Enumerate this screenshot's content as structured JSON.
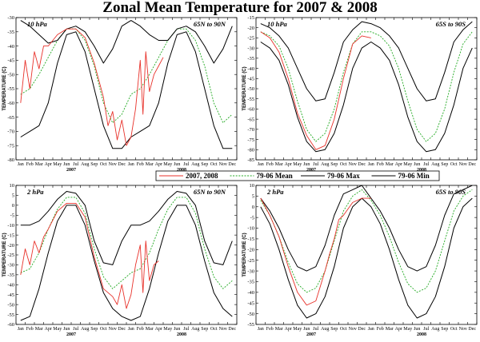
{
  "title": "Zonal Mean Temperature for 2007 & 2008",
  "legend": [
    {
      "label": "2007, 2008",
      "color": "#e8322b",
      "style": "solid"
    },
    {
      "label": "79-06 Mean",
      "color": "#22aa22",
      "style": "dotted"
    },
    {
      "label": "79-06 Max",
      "color": "#000000",
      "style": "solid"
    },
    {
      "label": "79-06 Min",
      "color": "#000000",
      "style": "solid"
    }
  ],
  "months": [
    "Jan",
    "Feb",
    "Mar",
    "Apr",
    "May",
    "Jun",
    "Jul",
    "Aug",
    "Sep",
    "Oct",
    "Nov",
    "Dec",
    "Jan",
    "Feb",
    "Mar",
    "Apr",
    "May",
    "Jun",
    "Jul",
    "Aug",
    "Sep",
    "Oct",
    "Nov",
    "Dec"
  ],
  "years": [
    "2007",
    "2008"
  ],
  "chart_data": [
    {
      "type": "line",
      "level": "10 hPa",
      "region": "65N to 90N",
      "ylabel": "TEMPERATURE (C)",
      "ylim": [
        -80,
        -30
      ],
      "yticks": [
        -80,
        -75,
        -70,
        -65,
        -60,
        -55,
        -50,
        -45,
        -40,
        -35,
        -30
      ],
      "x_months": 24,
      "series": [
        {
          "name": "79-06 Max",
          "x": [
            0,
            1,
            2,
            3,
            4,
            5,
            6,
            7,
            8,
            9,
            10,
            11,
            12,
            13,
            14,
            15,
            16,
            17,
            18,
            19,
            20,
            21,
            22,
            23
          ],
          "values": [
            -31,
            -33,
            -36,
            -39,
            -38,
            -34,
            -33,
            -35,
            -40,
            -46,
            -41,
            -33,
            -31,
            -33,
            -36,
            -38,
            -38,
            -34,
            -33,
            -35,
            -40,
            -46,
            -41,
            -33
          ]
        },
        {
          "name": "79-06 Mean",
          "x": [
            0,
            1,
            2,
            3,
            4,
            5,
            6,
            7,
            8,
            9,
            10,
            11,
            12,
            13,
            14,
            15,
            16,
            17,
            18,
            19,
            20,
            21,
            22,
            23
          ],
          "values": [
            -57,
            -55,
            -50,
            -44,
            -38,
            -34,
            -34,
            -38,
            -47,
            -60,
            -67,
            -64,
            -57,
            -55,
            -50,
            -44,
            -38,
            -34,
            -34,
            -38,
            -47,
            -60,
            -67,
            -64
          ]
        },
        {
          "name": "79-06 Min",
          "x": [
            0,
            1,
            2,
            3,
            4,
            5,
            6,
            7,
            8,
            9,
            10,
            11,
            12,
            13,
            14,
            15,
            16,
            17,
            18,
            19,
            20,
            21,
            22,
            23
          ],
          "values": [
            -72,
            -70,
            -68,
            -60,
            -46,
            -36,
            -35,
            -42,
            -55,
            -68,
            -76,
            -76,
            -72,
            -70,
            -68,
            -60,
            -46,
            -36,
            -35,
            -42,
            -55,
            -68,
            -76,
            -76
          ]
        },
        {
          "name": "2007, 2008",
          "x": [
            0,
            0.5,
            1,
            1.5,
            2,
            2.5,
            3,
            4,
            5,
            6,
            7,
            8,
            9,
            9.5,
            10,
            10.5,
            11,
            11.5,
            12,
            12.5,
            13,
            13.3,
            13.6,
            14,
            14.5,
            15,
            15.5
          ],
          "values": [
            -60,
            -45,
            -55,
            -42,
            -48,
            -40,
            -40,
            -36,
            -34,
            -34,
            -37,
            -46,
            -58,
            -68,
            -63,
            -73,
            -66,
            -75,
            -72,
            -62,
            -45,
            -64,
            -42,
            -56,
            -50,
            -47,
            -44
          ]
        }
      ]
    },
    {
      "type": "line",
      "level": "10 hPa",
      "region": "65S to 90S",
      "ylabel": "TEMPERATURE (C)",
      "ylim": [
        -85,
        -15
      ],
      "yticks": [
        -85,
        -80,
        -75,
        -70,
        -65,
        -60,
        -55,
        -50,
        -45,
        -40,
        -35,
        -30,
        -25,
        -20,
        -15
      ],
      "x_months": 24,
      "series": [
        {
          "name": "79-06 Max",
          "x": [
            0,
            1,
            2,
            3,
            4,
            5,
            6,
            7,
            8,
            9,
            10,
            11,
            12,
            13,
            14,
            15,
            16,
            17,
            18,
            19,
            20,
            21,
            22,
            23
          ],
          "values": [
            -18,
            -20,
            -24,
            -30,
            -40,
            -50,
            -56,
            -55,
            -42,
            -27,
            -21,
            -17,
            -18,
            -20,
            -24,
            -30,
            -40,
            -50,
            -56,
            -55,
            -42,
            -27,
            -21,
            -17
          ]
        },
        {
          "name": "79-06 Mean",
          "x": [
            0,
            1,
            2,
            3,
            4,
            5,
            6,
            7,
            8,
            9,
            10,
            11,
            12,
            13,
            14,
            15,
            16,
            17,
            18,
            19,
            20,
            21,
            22,
            23
          ],
          "values": [
            -22,
            -24,
            -29,
            -40,
            -56,
            -70,
            -76,
            -72,
            -60,
            -42,
            -28,
            -22,
            -22,
            -24,
            -29,
            -40,
            -56,
            -70,
            -76,
            -72,
            -60,
            -42,
            -28,
            -22
          ]
        },
        {
          "name": "79-06 Min",
          "x": [
            0,
            1,
            2,
            3,
            4,
            5,
            6,
            7,
            8,
            9,
            10,
            11,
            12,
            13,
            14,
            15,
            16,
            17,
            18,
            19,
            20,
            21,
            22,
            23
          ],
          "values": [
            -27,
            -30,
            -36,
            -48,
            -64,
            -76,
            -81,
            -80,
            -72,
            -58,
            -40,
            -30,
            -27,
            -30,
            -36,
            -48,
            -64,
            -76,
            -81,
            -80,
            -72,
            -58,
            -40,
            -30
          ]
        },
        {
          "name": "2007, 2008",
          "x": [
            0,
            1,
            2,
            3,
            4,
            5,
            6,
            7,
            8,
            9,
            10,
            11,
            12
          ],
          "values": [
            -22,
            -25,
            -32,
            -45,
            -62,
            -73,
            -80,
            -78,
            -65,
            -45,
            -28,
            -24,
            -25
          ]
        }
      ]
    },
    {
      "type": "line",
      "level": "2 hPa",
      "region": "65N to 90N",
      "ylabel": "TEMPERATURE (C)",
      "ylim": [
        -60,
        10
      ],
      "yticks": [
        -60,
        -55,
        -50,
        -45,
        -40,
        -35,
        -30,
        -25,
        -20,
        -15,
        -10,
        -5,
        0,
        5,
        10
      ],
      "x_months": 24,
      "series": [
        {
          "name": "79-06 Max",
          "x": [
            0,
            1,
            2,
            3,
            4,
            5,
            6,
            7,
            8,
            9,
            10,
            11,
            12,
            13,
            14,
            15,
            16,
            17,
            18,
            19,
            20,
            21,
            22,
            23
          ],
          "values": [
            -10,
            -10,
            -8,
            -3,
            3,
            7,
            6,
            0,
            -18,
            -29,
            -30,
            -18,
            -10,
            -10,
            -8,
            -3,
            3,
            7,
            6,
            0,
            -18,
            -29,
            -30,
            -18
          ]
        },
        {
          "name": "79-06 Mean",
          "x": [
            0,
            1,
            2,
            3,
            4,
            5,
            6,
            7,
            8,
            9,
            10,
            11,
            12,
            13,
            14,
            15,
            16,
            17,
            18,
            19,
            20,
            21,
            22,
            23
          ],
          "values": [
            -34,
            -32,
            -24,
            -12,
            -2,
            4,
            4,
            -4,
            -22,
            -36,
            -42,
            -38,
            -34,
            -32,
            -24,
            -12,
            -2,
            4,
            4,
            -4,
            -22,
            -36,
            -42,
            -38
          ]
        },
        {
          "name": "79-06 Min",
          "x": [
            0,
            1,
            2,
            3,
            4,
            5,
            6,
            7,
            8,
            9,
            10,
            11,
            12,
            13,
            14,
            15,
            16,
            17,
            18,
            19,
            20,
            21,
            22,
            23
          ],
          "values": [
            -58,
            -56,
            -42,
            -24,
            -8,
            0,
            0,
            -10,
            -28,
            -44,
            -52,
            -56,
            -58,
            -56,
            -42,
            -24,
            -8,
            0,
            0,
            -10,
            -28,
            -44,
            -52,
            -56
          ]
        },
        {
          "name": "2007, 2008",
          "x": [
            0,
            0.5,
            1,
            1.5,
            2,
            2.5,
            3,
            4,
            5,
            6,
            7,
            8,
            9,
            10,
            10.5,
            11,
            11.5,
            12,
            12.5,
            13,
            13.3,
            13.6,
            14,
            14.5,
            15
          ],
          "values": [
            -35,
            -22,
            -30,
            -18,
            -24,
            -16,
            -12,
            -3,
            1,
            1,
            -6,
            -26,
            -42,
            -46,
            -50,
            -40,
            -52,
            -45,
            -30,
            -20,
            -44,
            -18,
            -38,
            -30,
            -28
          ]
        }
      ]
    },
    {
      "type": "line",
      "level": "2 hPa",
      "region": "65S to 90S",
      "ylabel": "TEMPERATURE (C)",
      "ylim": [
        -55,
        10
      ],
      "yticks": [
        -55,
        -50,
        -45,
        -40,
        -35,
        -30,
        -25,
        -20,
        -15,
        -10,
        -5,
        0,
        5,
        10
      ],
      "x_months": 24,
      "series": [
        {
          "name": "79-06 Max",
          "x": [
            0,
            1,
            2,
            3,
            4,
            5,
            6,
            7,
            8,
            9,
            10,
            11,
            12,
            13,
            14,
            15,
            16,
            17,
            18,
            19,
            20,
            21,
            22,
            23
          ],
          "values": [
            4,
            -2,
            -10,
            -20,
            -28,
            -30,
            -28,
            -18,
            -4,
            6,
            8,
            10,
            4,
            -2,
            -10,
            -20,
            -28,
            -30,
            -28,
            -18,
            -4,
            6,
            8,
            10
          ]
        },
        {
          "name": "79-06 Mean",
          "x": [
            0,
            1,
            2,
            3,
            4,
            5,
            6,
            7,
            8,
            9,
            10,
            11,
            12,
            13,
            14,
            15,
            16,
            17,
            18,
            19,
            20,
            21,
            22,
            23
          ],
          "values": [
            3,
            -4,
            -14,
            -26,
            -36,
            -40,
            -38,
            -30,
            -16,
            -2,
            5,
            8,
            3,
            -4,
            -14,
            -26,
            -36,
            -40,
            -38,
            -30,
            -16,
            -2,
            5,
            8
          ]
        },
        {
          "name": "79-06 Min",
          "x": [
            0,
            1,
            2,
            3,
            4,
            5,
            6,
            7,
            8,
            9,
            10,
            11,
            12,
            13,
            14,
            15,
            16,
            17,
            18,
            19,
            20,
            21,
            22,
            23
          ],
          "values": [
            0,
            -8,
            -20,
            -34,
            -46,
            -52,
            -50,
            -42,
            -28,
            -10,
            0,
            4,
            0,
            -8,
            -20,
            -34,
            -46,
            -52,
            -50,
            -42,
            -28,
            -10,
            0,
            4
          ]
        },
        {
          "name": "2007, 2008",
          "x": [
            0,
            1,
            2,
            3,
            4,
            5,
            6,
            7,
            7.5,
            8,
            8.5,
            9,
            10,
            11,
            12
          ],
          "values": [
            4,
            -4,
            -14,
            -28,
            -40,
            -46,
            -44,
            -30,
            -22,
            -15,
            -6,
            -4,
            2,
            4,
            4
          ]
        }
      ]
    }
  ]
}
